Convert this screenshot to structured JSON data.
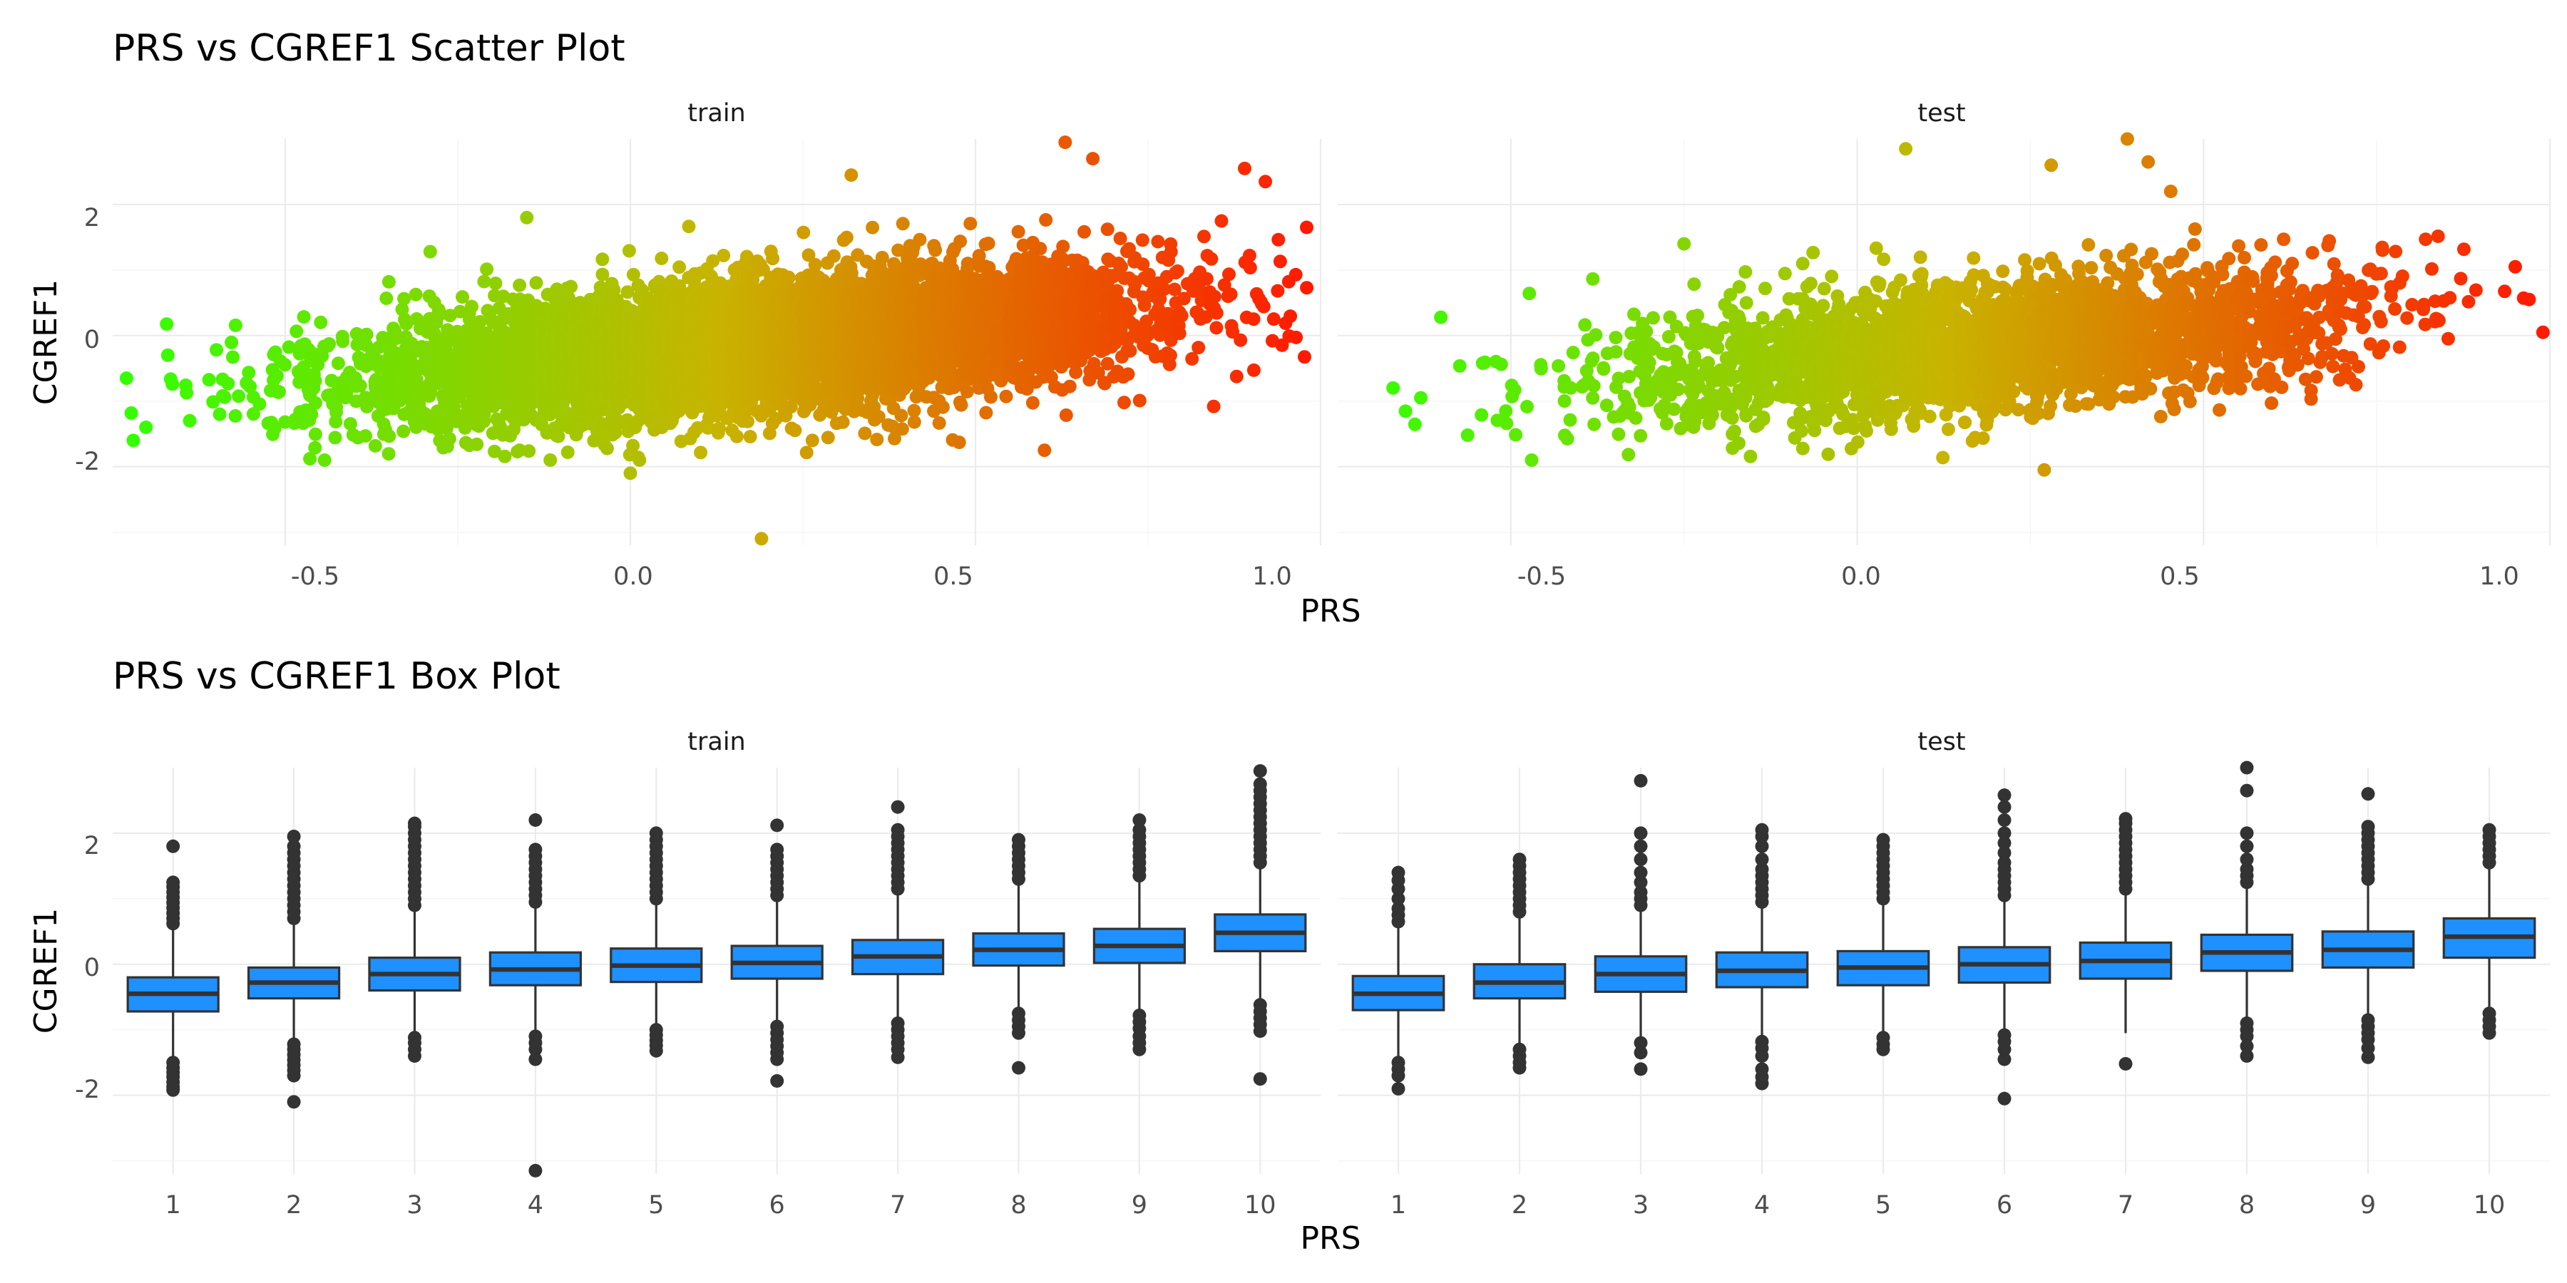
{
  "chart_data": [
    {
      "type": "scatter",
      "title": "PRS vs CGREF1 Scatter Plot",
      "xlabel": "PRS",
      "ylabel": "CGREF1",
      "facets": [
        "train",
        "test"
      ],
      "xlim": [
        -0.75,
        1.0
      ],
      "ylim": [
        -3.2,
        3.0
      ],
      "x_ticks": [
        -0.5,
        0.0,
        0.5,
        1.0
      ],
      "x_tick_labels": [
        "-0.5",
        "0.0",
        "0.5",
        "1.0"
      ],
      "y_ticks": [
        -2,
        0,
        2
      ],
      "y_tick_labels": [
        "-2",
        "0",
        "2"
      ],
      "grid": true,
      "color_gradient": {
        "low": "#33ff00",
        "mid": "#c8b400",
        "high": "#ff1a00",
        "mapped_to": "PRS"
      },
      "trend": {
        "intercept": -0.3,
        "slope": 0.9,
        "sd": 0.5
      },
      "series": [
        {
          "facet": "train",
          "x_range": [
            -0.73,
            0.98
          ],
          "n_points": 6500,
          "extreme_points": [
            {
              "x": -0.73,
              "y": -0.65
            },
            {
              "x": -0.72,
              "y": -1.6
            },
            {
              "x": -0.67,
              "y": -0.3
            },
            {
              "x": -0.29,
              "y": 1.28
            },
            {
              "x": -0.15,
              "y": 1.8
            },
            {
              "x": 0.0,
              "y": -2.1
            },
            {
              "x": 0.19,
              "y": -3.1
            },
            {
              "x": 0.63,
              "y": 2.95
            },
            {
              "x": 0.67,
              "y": 2.7
            },
            {
              "x": 0.89,
              "y": 2.55
            },
            {
              "x": 0.92,
              "y": 2.35
            },
            {
              "x": 0.98,
              "y": 0.73
            },
            {
              "x": 0.6,
              "y": -1.75
            },
            {
              "x": 0.32,
              "y": 2.45
            }
          ]
        },
        {
          "facet": "test",
          "x_range": [
            -0.67,
            0.99
          ],
          "n_points": 2800,
          "extreme_points": [
            {
              "x": -0.67,
              "y": -0.8
            },
            {
              "x": -0.63,
              "y": -0.95
            },
            {
              "x": -0.47,
              "y": -1.9
            },
            {
              "x": -0.25,
              "y": 1.4
            },
            {
              "x": 0.07,
              "y": 2.85
            },
            {
              "x": 0.27,
              "y": -2.05
            },
            {
              "x": 0.39,
              "y": 3.0
            },
            {
              "x": 0.28,
              "y": 2.6
            },
            {
              "x": 0.42,
              "y": 2.65
            },
            {
              "x": 0.95,
              "y": 1.05
            },
            {
              "x": 0.97,
              "y": 0.55
            },
            {
              "x": 0.99,
              "y": 0.05
            },
            {
              "x": 0.72,
              "y": -0.75
            }
          ]
        }
      ]
    },
    {
      "type": "box",
      "title": "PRS vs CGREF1 Box Plot",
      "xlabel": "PRS",
      "ylabel": "CGREF1",
      "facets": [
        "train",
        "test"
      ],
      "categories": [
        "1",
        "2",
        "3",
        "4",
        "5",
        "6",
        "7",
        "8",
        "9",
        "10"
      ],
      "ylim": [
        -3.2,
        3.0
      ],
      "y_ticks": [
        -2,
        0,
        2
      ],
      "y_tick_labels": [
        "-2",
        "0",
        "2"
      ],
      "grid": true,
      "box_color": "#1e90ff",
      "outline_color": "#333333",
      "series": [
        {
          "facet": "train",
          "boxes": [
            {
              "q1": -0.72,
              "median": -0.45,
              "q3": -0.2,
              "lower": -1.48,
              "upper": 0.58,
              "outliers": [
                -1.5,
                -1.58,
                -1.65,
                -1.72,
                -1.8,
                -1.87,
                -1.92,
                0.62,
                0.7,
                0.78,
                0.86,
                0.94,
                1.02,
                1.1,
                1.18,
                1.25,
                1.8
              ]
            },
            {
              "q1": -0.52,
              "median": -0.28,
              "q3": -0.05,
              "lower": -1.18,
              "upper": 0.65,
              "outliers": [
                -1.22,
                -1.3,
                -1.38,
                -1.46,
                -1.54,
                -1.62,
                -1.7,
                -2.1,
                0.7,
                0.8,
                0.9,
                1.0,
                1.1,
                1.2,
                1.3,
                1.4,
                1.5,
                1.6,
                1.7,
                1.8,
                1.95
              ]
            },
            {
              "q1": -0.4,
              "median": -0.15,
              "q3": 0.1,
              "lower": -1.1,
              "upper": 0.82,
              "outliers": [
                -1.12,
                -1.2,
                -1.3,
                -1.4,
                0.9,
                1.0,
                1.1,
                1.2,
                1.3,
                1.4,
                1.5,
                1.6,
                1.7,
                1.8,
                1.9,
                2.0,
                2.1,
                2.15
              ]
            },
            {
              "q1": -0.32,
              "median": -0.08,
              "q3": 0.18,
              "lower": -1.05,
              "upper": 0.9,
              "outliers": [
                -1.1,
                -1.2,
                -1.3,
                -1.45,
                -3.15,
                0.95,
                1.05,
                1.15,
                1.25,
                1.35,
                1.45,
                1.55,
                1.65,
                1.75,
                2.2
              ]
            },
            {
              "q1": -0.27,
              "median": -0.02,
              "q3": 0.24,
              "lower": -0.98,
              "upper": 0.95,
              "outliers": [
                -1.0,
                -1.08,
                -1.16,
                -1.24,
                -1.32,
                1.0,
                1.1,
                1.2,
                1.3,
                1.4,
                1.5,
                1.6,
                1.7,
                1.8,
                1.9,
                2.0
              ]
            },
            {
              "q1": -0.22,
              "median": 0.02,
              "q3": 0.28,
              "lower": -0.92,
              "upper": 1.0,
              "outliers": [
                -0.95,
                -1.05,
                -1.15,
                -1.25,
                -1.35,
                -1.45,
                -1.78,
                1.05,
                1.15,
                1.25,
                1.35,
                1.45,
                1.55,
                1.65,
                1.75,
                2.12
              ]
            },
            {
              "q1": -0.15,
              "median": 0.12,
              "q3": 0.37,
              "lower": -0.85,
              "upper": 1.1,
              "outliers": [
                -0.9,
                -1.0,
                -1.1,
                -1.2,
                -1.3,
                -1.42,
                1.15,
                1.25,
                1.35,
                1.45,
                1.55,
                1.65,
                1.75,
                1.85,
                1.95,
                2.05,
                2.4
              ]
            },
            {
              "q1": -0.02,
              "median": 0.22,
              "q3": 0.47,
              "lower": -0.72,
              "upper": 1.22,
              "outliers": [
                -0.75,
                -0.85,
                -0.95,
                -1.05,
                -1.58,
                1.3,
                1.4,
                1.5,
                1.6,
                1.7,
                1.8,
                1.9
              ]
            },
            {
              "q1": 0.02,
              "median": 0.28,
              "q3": 0.54,
              "lower": -0.72,
              "upper": 1.28,
              "outliers": [
                -0.78,
                -0.88,
                -0.98,
                -1.1,
                -1.2,
                -1.3,
                1.35,
                1.45,
                1.55,
                1.65,
                1.75,
                1.85,
                1.95,
                2.05,
                2.2
              ]
            },
            {
              "q1": 0.2,
              "median": 0.48,
              "q3": 0.76,
              "lower": -0.55,
              "upper": 1.48,
              "outliers": [
                -0.62,
                -0.72,
                -0.82,
                -0.92,
                -1.02,
                -1.75,
                1.55,
                1.65,
                1.75,
                1.85,
                1.95,
                2.05,
                2.15,
                2.25,
                2.35,
                2.45,
                2.55,
                2.65,
                2.75,
                2.95
              ]
            }
          ]
        },
        {
          "facet": "test",
          "boxes": [
            {
              "q1": -0.7,
              "median": -0.45,
              "q3": -0.18,
              "lower": -1.42,
              "upper": 0.58,
              "outliers": [
                -1.5,
                -1.6,
                -1.7,
                -1.9,
                0.65,
                0.75,
                0.85,
                1.0,
                1.15,
                1.28,
                1.4
              ]
            },
            {
              "q1": -0.52,
              "median": -0.28,
              "q3": 0.0,
              "lower": -1.25,
              "upper": 0.72,
              "outliers": [
                -1.3,
                -1.4,
                -1.5,
                -1.58,
                0.8,
                0.9,
                1.0,
                1.1,
                1.2,
                1.3,
                1.4,
                1.5,
                1.6
              ]
            },
            {
              "q1": -0.42,
              "median": -0.15,
              "q3": 0.12,
              "lower": -1.15,
              "upper": 0.85,
              "outliers": [
                -1.2,
                -1.35,
                -1.6,
                0.9,
                1.0,
                1.1,
                1.25,
                1.4,
                1.6,
                1.8,
                2.0,
                2.8
              ]
            },
            {
              "q1": -0.35,
              "median": -0.1,
              "q3": 0.18,
              "lower": -1.1,
              "upper": 0.9,
              "outliers": [
                -1.18,
                -1.28,
                -1.4,
                -1.6,
                -1.72,
                -1.82,
                0.95,
                1.05,
                1.15,
                1.25,
                1.35,
                1.45,
                1.6,
                1.8,
                1.95,
                2.05
              ]
            },
            {
              "q1": -0.32,
              "median": -0.05,
              "q3": 0.2,
              "lower": -1.05,
              "upper": 0.95,
              "outliers": [
                -1.12,
                -1.22,
                -1.3,
                1.0,
                1.1,
                1.2,
                1.3,
                1.4,
                1.5,
                1.6,
                1.7,
                1.8,
                1.9
              ]
            },
            {
              "q1": -0.28,
              "median": 0.0,
              "q3": 0.26,
              "lower": -1.0,
              "upper": 1.0,
              "outliers": [
                -1.08,
                -1.18,
                -1.3,
                -1.45,
                -2.05,
                1.05,
                1.15,
                1.25,
                1.35,
                1.45,
                1.55,
                1.7,
                1.85,
                2.0,
                2.2,
                2.4,
                2.58
              ]
            },
            {
              "q1": -0.22,
              "median": 0.05,
              "q3": 0.33,
              "lower": -1.05,
              "upper": 1.1,
              "outliers": [
                -1.52,
                1.15,
                1.25,
                1.35,
                1.45,
                1.55,
                1.65,
                1.75,
                1.85,
                1.95,
                2.05,
                2.15,
                2.22
              ]
            },
            {
              "q1": -0.1,
              "median": 0.18,
              "q3": 0.45,
              "lower": -0.85,
              "upper": 1.2,
              "outliers": [
                -0.9,
                -1.0,
                -1.1,
                -1.25,
                -1.4,
                1.25,
                1.35,
                1.45,
                1.6,
                1.8,
                2.0,
                2.65,
                3.0
              ]
            },
            {
              "q1": -0.05,
              "median": 0.22,
              "q3": 0.5,
              "lower": -0.8,
              "upper": 1.25,
              "outliers": [
                -0.85,
                -0.95,
                -1.05,
                -1.15,
                -1.28,
                -1.42,
                1.3,
                1.4,
                1.5,
                1.6,
                1.7,
                1.8,
                1.9,
                2.0,
                2.1,
                2.6
              ]
            },
            {
              "q1": 0.1,
              "median": 0.42,
              "q3": 0.7,
              "lower": -0.68,
              "upper": 1.45,
              "outliers": [
                -0.75,
                -0.85,
                -0.95,
                -1.05,
                1.55,
                1.65,
                1.75,
                1.85,
                1.95,
                2.05
              ]
            }
          ]
        }
      ]
    }
  ]
}
